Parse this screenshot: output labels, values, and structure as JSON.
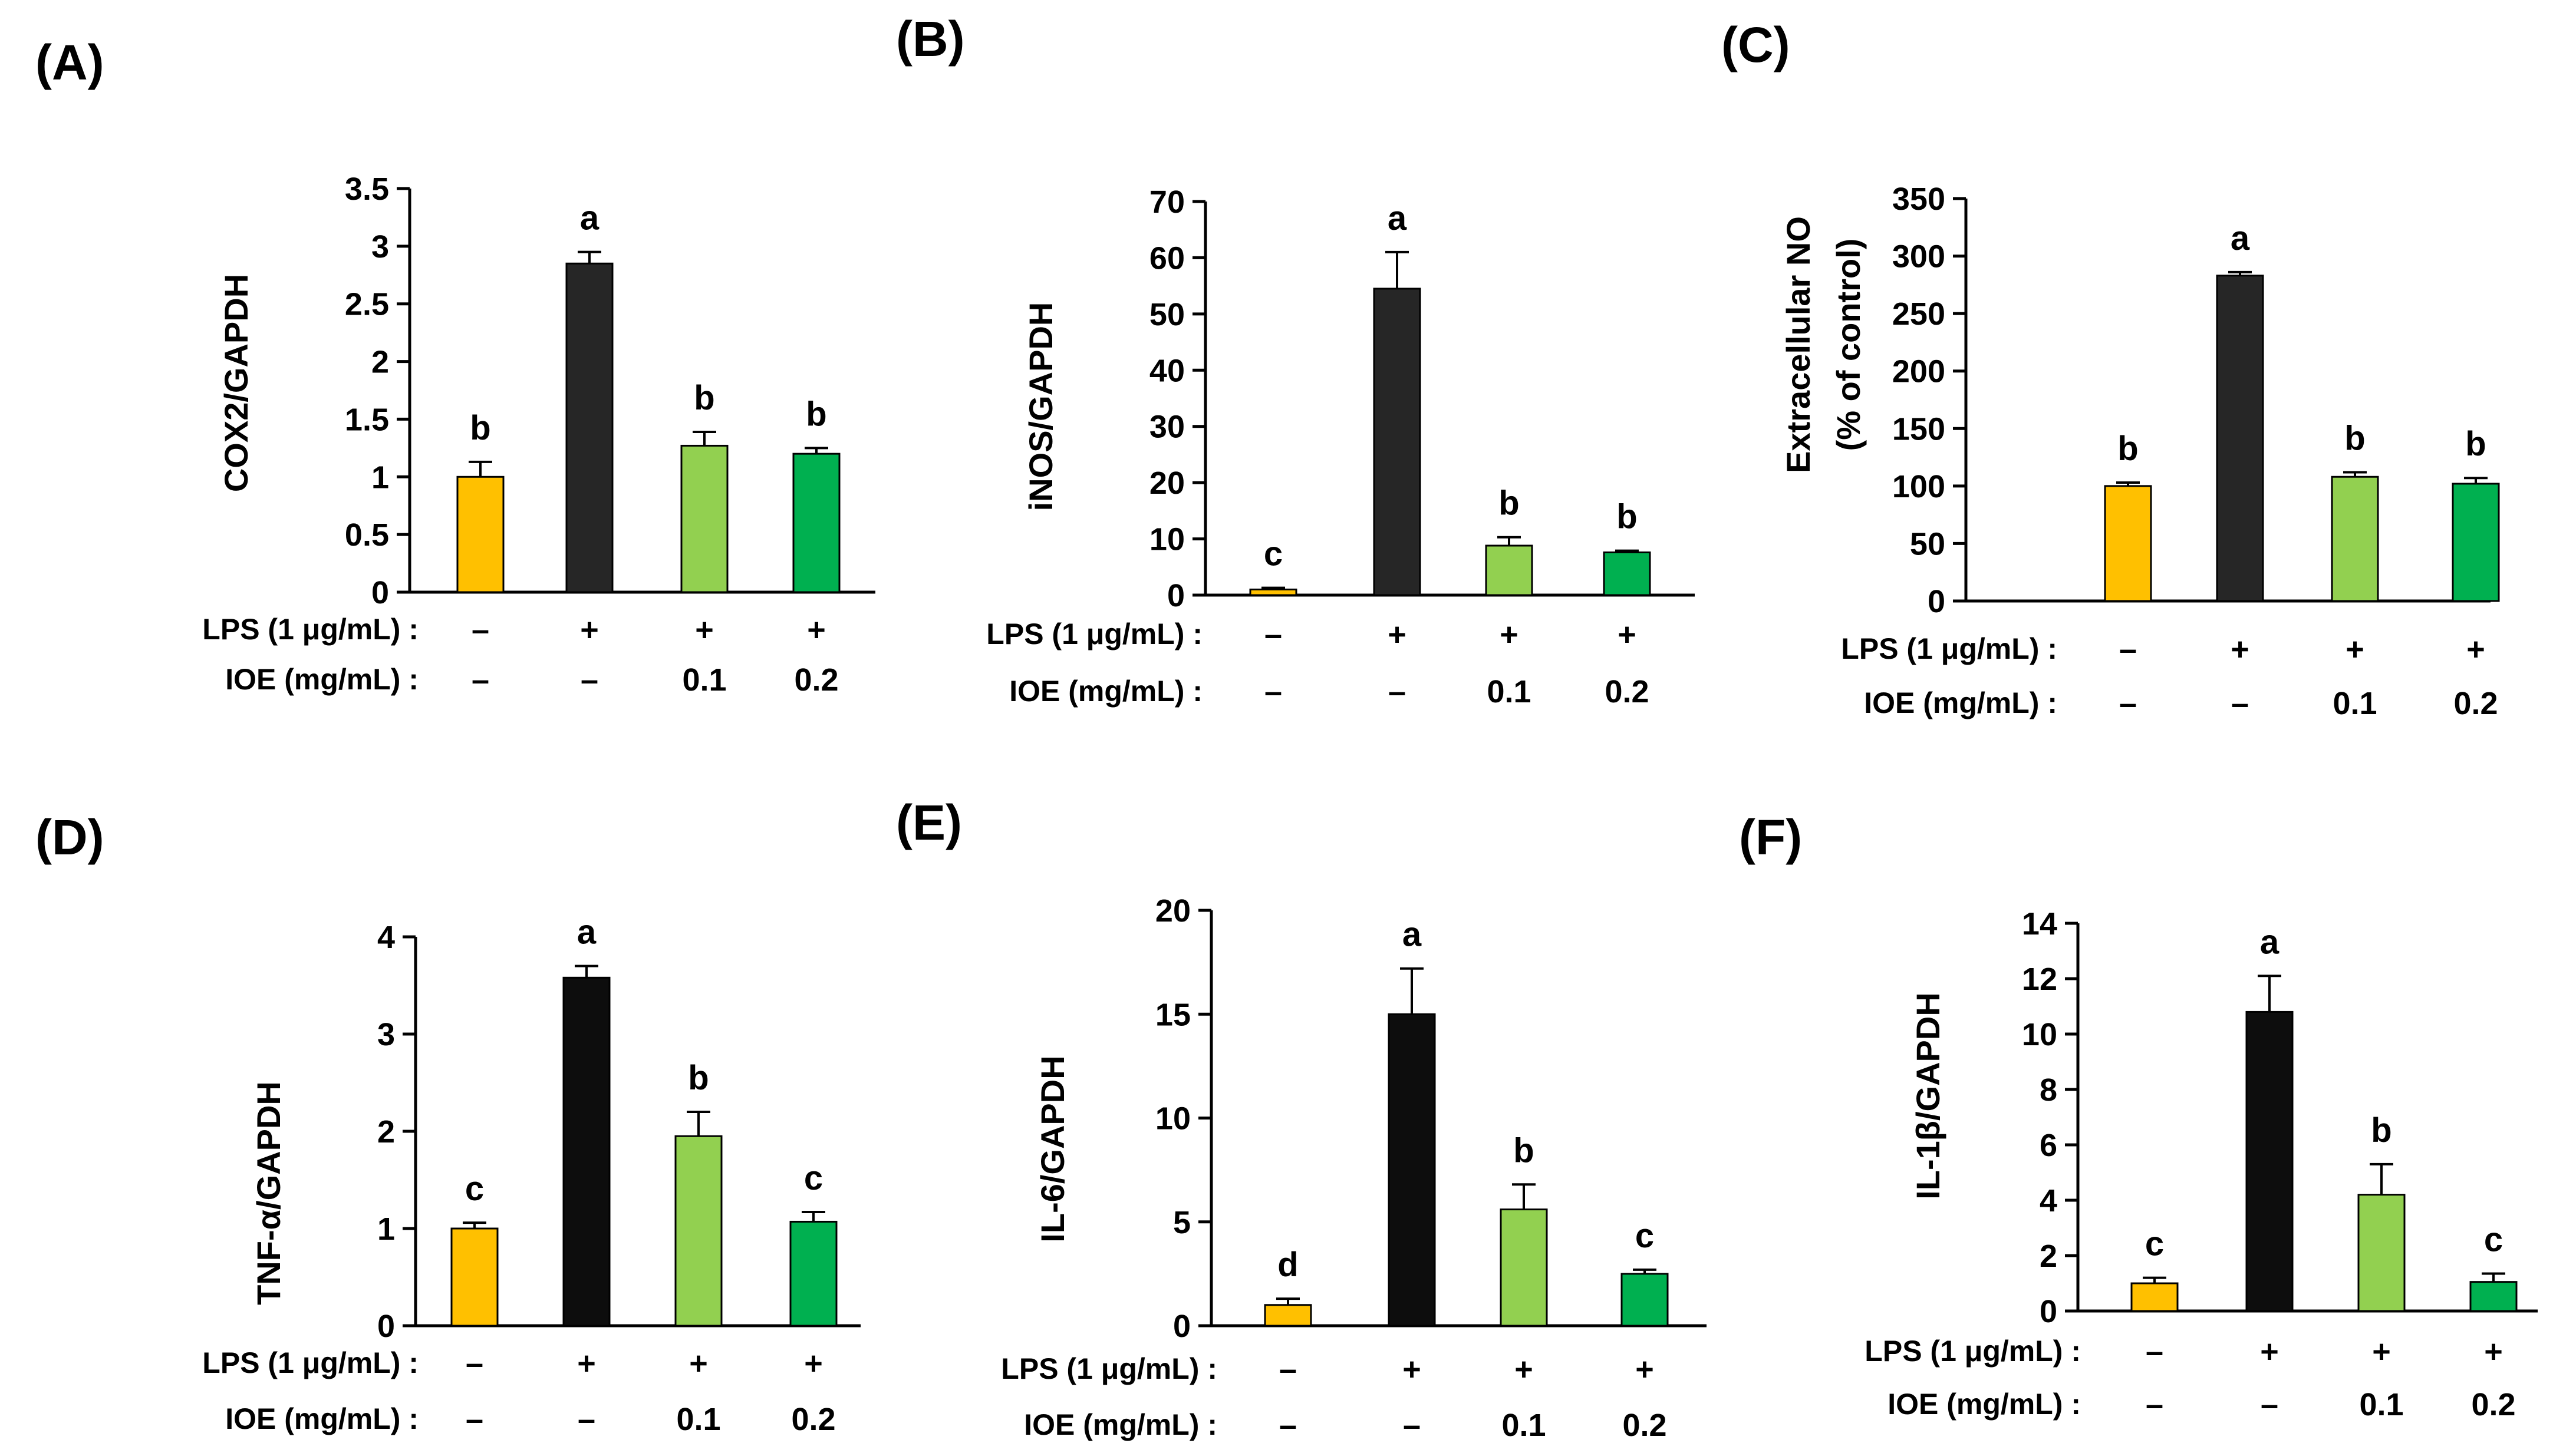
{
  "colors": {
    "control": "#FFC000",
    "lps": "#262626",
    "lps_dark": "#0D0D0D",
    "ioe_low": "#92D050",
    "ioe_high": "#00B050",
    "axis": "#000000"
  },
  "conditions": {
    "lps_label": "LPS (1 μg/mL) :",
    "ioe_label": "IOE  (mg/mL) :",
    "lps_values": [
      "–",
      "+",
      "+",
      "+"
    ],
    "ioe_values": [
      "–",
      "–",
      "0.1",
      "0.2"
    ]
  },
  "chart_data": [
    {
      "panel": "(A)",
      "type": "bar",
      "ylabel": "COX2/GAPDH",
      "ylim": [
        0,
        3.5
      ],
      "yticks": [
        0,
        0.5,
        1,
        1.5,
        2,
        2.5,
        3,
        3.5
      ],
      "ytick_labels": [
        "0",
        "0.5",
        "1",
        "1.5",
        "2",
        "2.5",
        "3",
        "3.5"
      ],
      "values": [
        1.0,
        2.85,
        1.27,
        1.2
      ],
      "errors": [
        0.13,
        0.1,
        0.12,
        0.05
      ],
      "letters": [
        "b",
        "a",
        "b",
        "b"
      ]
    },
    {
      "panel": "(B)",
      "type": "bar",
      "ylabel": "iNOS/GAPDH",
      "ylim": [
        0,
        70
      ],
      "yticks": [
        0,
        10,
        20,
        30,
        40,
        50,
        60,
        70
      ],
      "ytick_labels": [
        "0",
        "10",
        "20",
        "30",
        "40",
        "50",
        "60",
        "70"
      ],
      "values": [
        1.0,
        54.5,
        8.8,
        7.6
      ],
      "errors": [
        0.3,
        6.5,
        1.5,
        0.3
      ],
      "letters": [
        "c",
        "a",
        "b",
        "b"
      ]
    },
    {
      "panel": "(C)",
      "type": "bar",
      "ylabel": "Extracellular NO",
      "ylabel2": "(% of control)",
      "ylim": [
        0,
        350
      ],
      "yticks": [
        0,
        50,
        100,
        150,
        200,
        250,
        300,
        350
      ],
      "ytick_labels": [
        "0",
        "50",
        "100",
        "150",
        "200",
        "250",
        "300",
        "350"
      ],
      "values": [
        100,
        283,
        108,
        102
      ],
      "errors": [
        3,
        3,
        4,
        5
      ],
      "letters": [
        "b",
        "a",
        "b",
        "b"
      ]
    },
    {
      "panel": "(D)",
      "type": "bar",
      "ylabel": "TNF-α/GAPDH",
      "ylim": [
        0,
        4
      ],
      "yticks": [
        0,
        1,
        2,
        3,
        4
      ],
      "ytick_labels": [
        "0",
        "1",
        "2",
        "3",
        "4"
      ],
      "values": [
        1.0,
        3.58,
        1.95,
        1.07
      ],
      "errors": [
        0.06,
        0.12,
        0.25,
        0.1
      ],
      "letters": [
        "c",
        "a",
        "b",
        "c"
      ]
    },
    {
      "panel": "(E)",
      "type": "bar",
      "ylabel": "IL-6/GAPDH",
      "ylim": [
        0,
        20
      ],
      "yticks": [
        0,
        5,
        10,
        15,
        20
      ],
      "ytick_labels": [
        "0",
        "5",
        "10",
        "15",
        "20"
      ],
      "values": [
        1.0,
        15.0,
        5.6,
        2.5
      ],
      "errors": [
        0.3,
        2.2,
        1.2,
        0.2
      ],
      "letters": [
        "d",
        "a",
        "b",
        "c"
      ]
    },
    {
      "panel": "(F)",
      "type": "bar",
      "ylabel": "IL-1β/GAPDH",
      "ylim": [
        0,
        14
      ],
      "yticks": [
        0,
        2,
        4,
        6,
        8,
        10,
        12,
        14
      ],
      "ytick_labels": [
        "0",
        "2",
        "4",
        "6",
        "8",
        "10",
        "12",
        "14"
      ],
      "values": [
        1.0,
        10.8,
        4.2,
        1.05
      ],
      "errors": [
        0.2,
        1.3,
        1.1,
        0.3
      ],
      "letters": [
        "c",
        "a",
        "b",
        "c"
      ]
    }
  ]
}
